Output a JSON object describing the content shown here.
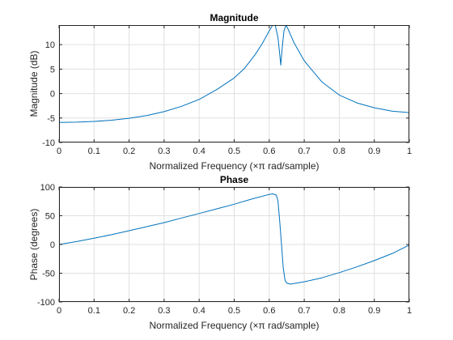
{
  "colors": {
    "line": "#0072bd",
    "grid": "#e0e0e0",
    "axis": "#262626",
    "background": "#ffffff"
  },
  "chart_data": [
    {
      "type": "line",
      "title": "Magnitude",
      "xlabel": "Normalized Frequency  (×π rad/sample)",
      "ylabel": "Magnitude (dB)",
      "xlim": [
        0,
        1
      ],
      "ylim": [
        -10,
        14
      ],
      "xticks": [
        0,
        0.1,
        0.2,
        0.3,
        0.4,
        0.5,
        0.6,
        0.7,
        0.8,
        0.9,
        1
      ],
      "xtick_labels": [
        "0",
        "0.1",
        "0.2",
        "0.3",
        "0.4",
        "0.5",
        "0.6",
        "0.7",
        "0.8",
        "0.9",
        "1"
      ],
      "yticks": [
        -10,
        -5,
        0,
        5,
        10
      ],
      "ytick_labels": [
        "-10",
        "-5",
        "0",
        "5",
        "10"
      ],
      "grid": true,
      "series": [
        {
          "x": [
            0,
            0.05,
            0.1,
            0.15,
            0.2,
            0.25,
            0.3,
            0.35,
            0.4,
            0.45,
            0.5,
            0.53,
            0.56,
            0.58,
            0.6,
            0.61,
            0.617,
            0.625,
            0.63,
            0.633,
            0.636,
            0.642,
            0.648,
            0.655,
            0.67,
            0.7,
            0.75,
            0.8,
            0.85,
            0.9,
            0.95,
            1
          ],
          "y": [
            -5.9,
            -5.85,
            -5.7,
            -5.45,
            -5.05,
            -4.5,
            -3.7,
            -2.6,
            -1.2,
            0.8,
            3.2,
            5.2,
            8.0,
            10.2,
            12.8,
            14.0,
            14.0,
            11.5,
            8.0,
            5.8,
            8.5,
            12.8,
            14.0,
            13.0,
            10.5,
            6.7,
            2.4,
            -0.3,
            -1.9,
            -2.9,
            -3.6,
            -3.9
          ]
        }
      ]
    },
    {
      "type": "line",
      "title": "Phase",
      "xlabel": "Normalized Frequency  (×π rad/sample)",
      "ylabel": "Phase (degrees)",
      "xlim": [
        0,
        1
      ],
      "ylim": [
        -100,
        100
      ],
      "xticks": [
        0,
        0.1,
        0.2,
        0.3,
        0.4,
        0.5,
        0.6,
        0.7,
        0.8,
        0.9,
        1
      ],
      "xtick_labels": [
        "0",
        "0.1",
        "0.2",
        "0.3",
        "0.4",
        "0.5",
        "0.6",
        "0.7",
        "0.8",
        "0.9",
        "1"
      ],
      "yticks": [
        -100,
        -50,
        0,
        50,
        100
      ],
      "ytick_labels": [
        "-100",
        "-50",
        "0",
        "50",
        "100"
      ],
      "grid": true,
      "series": [
        {
          "x": [
            0,
            0.05,
            0.1,
            0.15,
            0.2,
            0.25,
            0.3,
            0.35,
            0.4,
            0.45,
            0.5,
            0.55,
            0.6,
            0.61,
            0.62,
            0.625,
            0.63,
            0.635,
            0.64,
            0.645,
            0.65,
            0.66,
            0.67,
            0.7,
            0.75,
            0.8,
            0.85,
            0.9,
            0.95,
            1
          ],
          "y": [
            0,
            5,
            11,
            17,
            24,
            31,
            38,
            46,
            54,
            62,
            70,
            79,
            87,
            88,
            86,
            76,
            40,
            0,
            -40,
            -62,
            -67,
            -69,
            -68,
            -65,
            -58,
            -49,
            -39,
            -28,
            -16,
            -1
          ]
        }
      ]
    }
  ]
}
